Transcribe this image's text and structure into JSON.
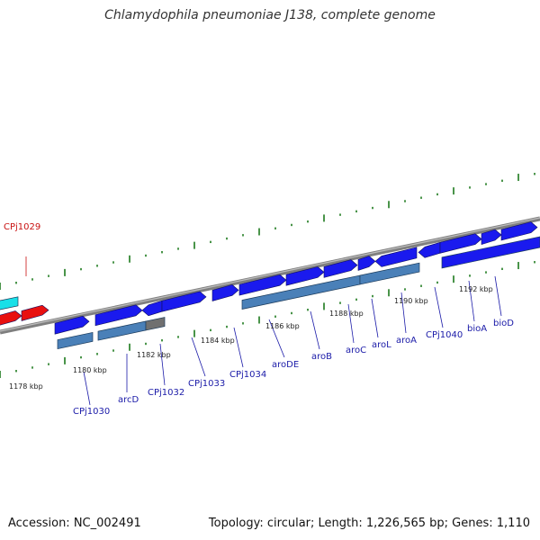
{
  "title": "Chlamydophila pneumoniae J138, complete genome",
  "accession": "Accession: NC_002491",
  "summary": "Topology: circular; Length: 1,226,565 bp; Genes: 1,110",
  "colors": {
    "forward_gene": "#1a1aee",
    "reverse_gene": "#4a80b8",
    "rna_gene": "#18e0e8",
    "highlight_gene": "#e81010",
    "other_gene": "#707070",
    "backbone": "#8a8a8a",
    "ticks": "#1c7a1c",
    "label_blue": "#1a1aa8",
    "label_red": "#c81010"
  },
  "ruler_labels": [
    {
      "id": "t1178",
      "text": "1178 kbp"
    },
    {
      "id": "t1180",
      "text": "1180 kbp"
    },
    {
      "id": "t1182",
      "text": "1182 kbp"
    },
    {
      "id": "t1184",
      "text": "1184 kbp"
    },
    {
      "id": "t1186",
      "text": "1186 kbp"
    },
    {
      "id": "t1188",
      "text": "1188 kbp"
    },
    {
      "id": "t1190",
      "text": "1190 kbp"
    },
    {
      "id": "t1192",
      "text": "1192 kbp"
    }
  ],
  "gene_labels": [
    {
      "id": "CPj1029",
      "text": "CPj1029",
      "color": "red"
    },
    {
      "id": "CPj1030",
      "text": "CPj1030",
      "color": "blue"
    },
    {
      "id": "arcD",
      "text": "arcD",
      "color": "blue"
    },
    {
      "id": "CPj1032",
      "text": "CPj1032",
      "color": "blue"
    },
    {
      "id": "CPj1033",
      "text": "CPj1033",
      "color": "blue"
    },
    {
      "id": "CPj1034",
      "text": "CPj1034",
      "color": "blue"
    },
    {
      "id": "aroDE",
      "text": "aroDE",
      "color": "blue"
    },
    {
      "id": "aroB",
      "text": "aroB",
      "color": "blue"
    },
    {
      "id": "aroC",
      "text": "aroC",
      "color": "blue"
    },
    {
      "id": "aroL",
      "text": "aroL",
      "color": "blue"
    },
    {
      "id": "aroA",
      "text": "aroA",
      "color": "blue"
    },
    {
      "id": "CPj1040",
      "text": "CPj1040",
      "color": "blue"
    },
    {
      "id": "bioA",
      "text": "bioA",
      "color": "blue"
    },
    {
      "id": "bioD",
      "text": "bioD",
      "color": "blue"
    }
  ]
}
